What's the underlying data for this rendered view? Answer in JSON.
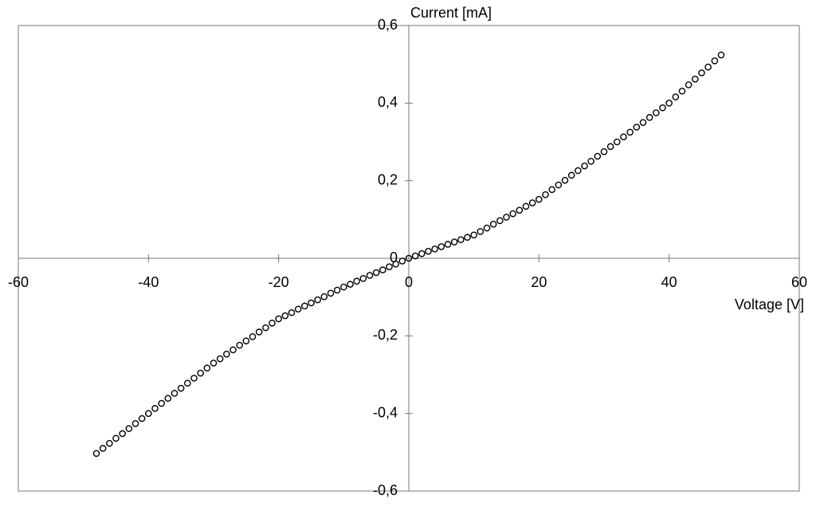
{
  "chart_data": {
    "type": "scatter",
    "x_label": "Voltage [V]",
    "y_label": "Current [mA]",
    "x": [
      -48,
      -47,
      -46,
      -45,
      -44,
      -43,
      -42,
      -41,
      -40,
      -39,
      -38,
      -37,
      -36,
      -35,
      -34,
      -33,
      -32,
      -31,
      -30,
      -29,
      -28,
      -27,
      -26,
      -25,
      -24,
      -23,
      -22,
      -21,
      -20,
      -19,
      -18,
      -17,
      -16,
      -15,
      -14,
      -13,
      -12,
      -11,
      -10,
      -9,
      -8,
      -7,
      -6,
      -5,
      -4,
      -3,
      -2,
      -1,
      0,
      1,
      2,
      3,
      4,
      5,
      6,
      7,
      8,
      9,
      10,
      11,
      12,
      13,
      14,
      15,
      16,
      17,
      18,
      19,
      20,
      21,
      22,
      23,
      24,
      25,
      26,
      27,
      28,
      29,
      30,
      31,
      32,
      33,
      34,
      35,
      36,
      37,
      38,
      39,
      40,
      41,
      42,
      43,
      44,
      45,
      46,
      47,
      48
    ],
    "values": [
      -0.503,
      -0.49,
      -0.477,
      -0.464,
      -0.452,
      -0.439,
      -0.426,
      -0.413,
      -0.4,
      -0.387,
      -0.374,
      -0.361,
      -0.348,
      -0.335,
      -0.322,
      -0.309,
      -0.296,
      -0.283,
      -0.27,
      -0.259,
      -0.247,
      -0.236,
      -0.224,
      -0.213,
      -0.202,
      -0.19,
      -0.179,
      -0.167,
      -0.156,
      -0.148,
      -0.14,
      -0.131,
      -0.123,
      -0.115,
      -0.107,
      -0.099,
      -0.09,
      -0.082,
      -0.074,
      -0.067,
      -0.059,
      -0.052,
      -0.044,
      -0.037,
      -0.03,
      -0.022,
      -0.015,
      -0.007,
      0,
      0.006,
      0.012,
      0.018,
      0.024,
      0.03,
      0.036,
      0.042,
      0.048,
      0.054,
      0.06,
      0.069,
      0.078,
      0.088,
      0.097,
      0.106,
      0.115,
      0.124,
      0.134,
      0.143,
      0.152,
      0.164,
      0.177,
      0.189,
      0.201,
      0.214,
      0.226,
      0.238,
      0.25,
      0.263,
      0.275,
      0.288,
      0.3,
      0.313,
      0.325,
      0.338,
      0.35,
      0.363,
      0.375,
      0.388,
      0.4,
      0.416,
      0.431,
      0.447,
      0.462,
      0.478,
      0.493,
      0.509,
      0.524
    ],
    "color": "#000000",
    "xlim": [
      -60,
      60
    ],
    "xticks": [
      -60,
      -40,
      -20,
      0,
      20,
      40,
      60
    ],
    "ylim": [
      -0.6,
      0.6
    ],
    "yticks": [
      {
        "value": -0.6,
        "label": "-0,6"
      },
      {
        "value": -0.4,
        "label": "-0,4"
      },
      {
        "value": -0.2,
        "label": "-0,2"
      },
      0,
      {
        "value": 0.2,
        "label": "0,2"
      },
      {
        "value": 0.4,
        "label": "0,4"
      },
      {
        "value": 0.6,
        "label": "0,6"
      }
    ],
    "grid": false
  }
}
